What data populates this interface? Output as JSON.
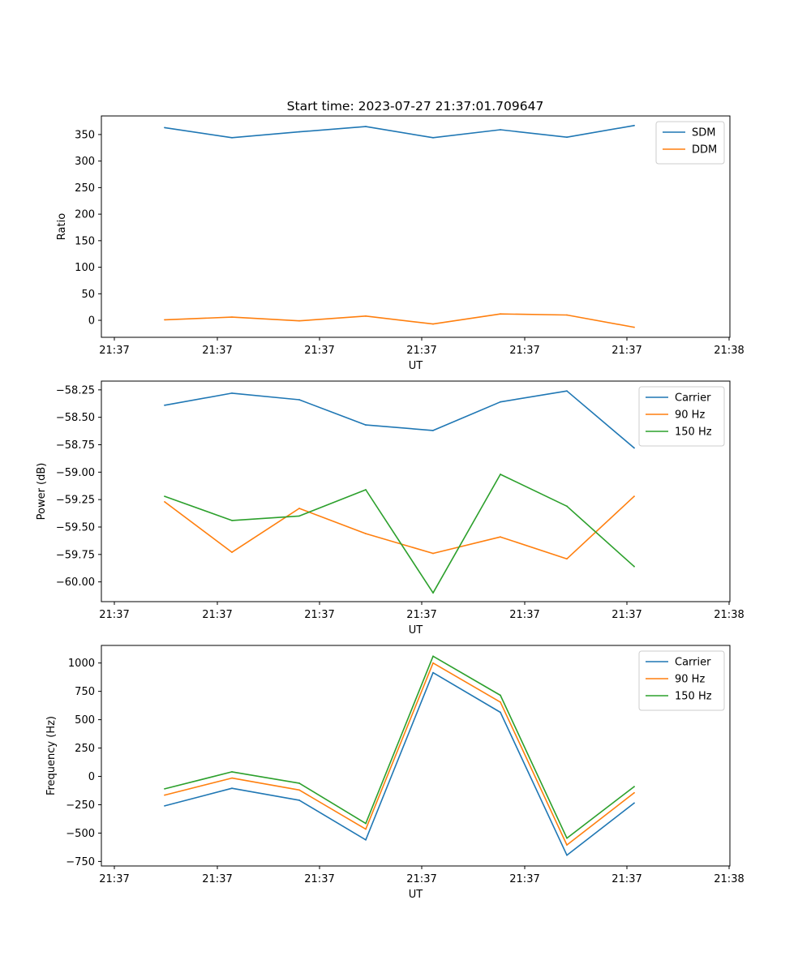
{
  "figure": {
    "title": "Start time: 2023-07-27 21:37:01.709647"
  },
  "chart_data": [
    {
      "type": "line",
      "title": "Start time: 2023-07-27 21:37:01.709647",
      "xlabel": "UT",
      "ylabel": "Ratio",
      "x_ticks": [
        "21:37",
        "21:37",
        "21:37",
        "21:37",
        "21:37",
        "21:37",
        "21:38"
      ],
      "y_ticks": [
        0,
        50,
        100,
        150,
        200,
        250,
        300,
        350
      ],
      "ylim": [
        -32,
        385
      ],
      "legend_position": "top-right",
      "series": [
        {
          "name": "SDM",
          "color": "#1f77b4",
          "values": [
            363,
            344,
            355,
            365,
            344,
            359,
            345,
            367
          ]
        },
        {
          "name": "DDM",
          "color": "#ff7f0e",
          "values": [
            1,
            6,
            -1,
            8,
            -7,
            12,
            10,
            -13
          ]
        }
      ]
    },
    {
      "type": "line",
      "title": "",
      "xlabel": "UT",
      "ylabel": "Power (dB)",
      "x_ticks": [
        "21:37",
        "21:37",
        "21:37",
        "21:37",
        "21:37",
        "21:37",
        "21:38"
      ],
      "y_ticks": [
        "−60.00",
        "−59.75",
        "−59.50",
        "−59.25",
        "−59.00",
        "−58.75",
        "−58.50",
        "−58.25"
      ],
      "y_tick_values": [
        -60.0,
        -59.75,
        -59.5,
        -59.25,
        -59.0,
        -58.75,
        -58.5,
        -58.25
      ],
      "ylim": [
        -60.18,
        -58.17
      ],
      "legend_position": "top-right",
      "series": [
        {
          "name": "Carrier",
          "color": "#1f77b4",
          "values": [
            -58.39,
            -58.28,
            -58.34,
            -58.57,
            -58.62,
            -58.36,
            -58.26,
            -58.78
          ]
        },
        {
          "name": "90 Hz",
          "color": "#ff7f0e",
          "values": [
            -59.27,
            -59.73,
            -59.33,
            -59.56,
            -59.74,
            -59.59,
            -59.79,
            -59.22
          ]
        },
        {
          "name": "150 Hz",
          "color": "#2ca02c",
          "values": [
            -59.22,
            -59.44,
            -59.4,
            -59.16,
            -60.1,
            -59.02,
            -59.31,
            -59.86
          ]
        }
      ]
    },
    {
      "type": "line",
      "title": "",
      "xlabel": "UT",
      "ylabel": "Frequency (Hz)",
      "x_ticks": [
        "21:37",
        "21:37",
        "21:37",
        "21:37",
        "21:37",
        "21:37",
        "21:38"
      ],
      "y_ticks": [
        "−750",
        "−500",
        "−250",
        "0",
        "250",
        "500",
        "750",
        "1000"
      ],
      "y_tick_values": [
        -750,
        -500,
        -250,
        0,
        250,
        500,
        750,
        1000
      ],
      "ylim": [
        -790,
        1155
      ],
      "legend_position": "top-right",
      "series": [
        {
          "name": "Carrier",
          "color": "#1f77b4",
          "values": [
            -260,
            -105,
            -210,
            -560,
            915,
            565,
            -695,
            -235
          ]
        },
        {
          "name": "90 Hz",
          "color": "#ff7f0e",
          "values": [
            -165,
            -15,
            -120,
            -465,
            1000,
            655,
            -605,
            -145
          ]
        },
        {
          "name": "150 Hz",
          "color": "#2ca02c",
          "values": [
            -110,
            40,
            -60,
            -415,
            1060,
            715,
            -545,
            -90
          ]
        }
      ]
    }
  ]
}
